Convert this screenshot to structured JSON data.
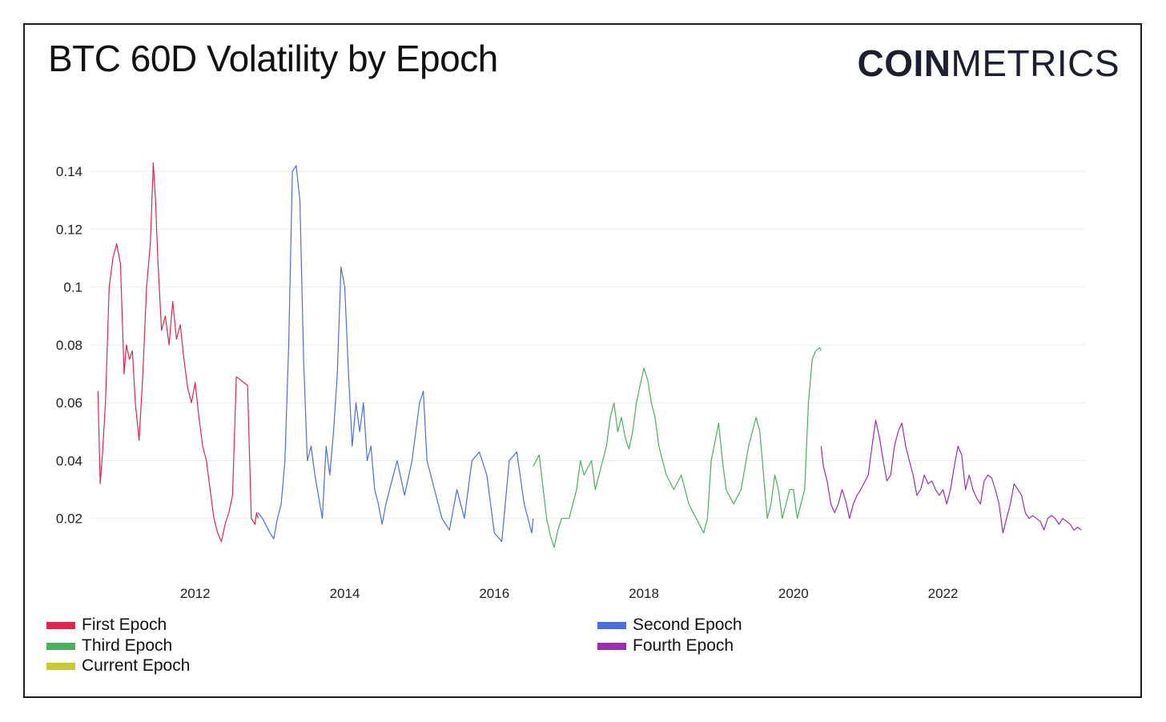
{
  "title": "BTC 60D Volatility by Epoch",
  "logo": {
    "bold": "COIN",
    "light": "METRICS"
  },
  "legend": [
    {
      "name": "First Epoch",
      "color": "#e0264f"
    },
    {
      "name": "Second Epoch",
      "color": "#4a6fdc"
    },
    {
      "name": "Third Epoch",
      "color": "#4caf5f"
    },
    {
      "name": "Fourth Epoch",
      "color": "#9b2fb2"
    },
    {
      "name": "Current Epoch",
      "color": "#c8cc34"
    }
  ],
  "chart_data": {
    "type": "line",
    "title": "BTC 60D Volatility by Epoch",
    "xlabel": "",
    "ylabel": "",
    "xlim": [
      2010.6,
      2023.9
    ],
    "ylim": [
      0.0,
      0.15
    ],
    "yticks": [
      0.02,
      0.04,
      0.06,
      0.08,
      0.1,
      0.12,
      0.14
    ],
    "ytick_labels": [
      "0.02",
      "0.04",
      "0.06",
      "0.08",
      "0.1",
      "0.12",
      "0.14"
    ],
    "xticks": [
      2012,
      2014,
      2016,
      2018,
      2020,
      2022
    ],
    "xtick_labels": [
      "2012",
      "2014",
      "2016",
      "2018",
      "2020",
      "2022"
    ],
    "grid": true,
    "legend_position": "bottom",
    "series": [
      {
        "name": "First Epoch",
        "color": "#e0264f",
        "x": [
          2010.7,
          2010.73,
          2010.76,
          2010.8,
          2010.85,
          2010.9,
          2010.95,
          2011.0,
          2011.05,
          2011.08,
          2011.12,
          2011.16,
          2011.2,
          2011.25,
          2011.3,
          2011.35,
          2011.4,
          2011.44,
          2011.47,
          2011.5,
          2011.55,
          2011.6,
          2011.65,
          2011.7,
          2011.75,
          2011.8,
          2011.85,
          2011.9,
          2011.95,
          2012.0,
          2012.05,
          2012.1,
          2012.15,
          2012.2,
          2012.25,
          2012.3,
          2012.35,
          2012.4,
          2012.45,
          2012.5,
          2012.55,
          2012.6,
          2012.65,
          2012.7,
          2012.75,
          2012.8,
          2012.82,
          2012.84
        ],
        "values": [
          0.064,
          0.032,
          0.042,
          0.06,
          0.1,
          0.11,
          0.115,
          0.108,
          0.07,
          0.08,
          0.075,
          0.078,
          0.06,
          0.047,
          0.07,
          0.1,
          0.115,
          0.143,
          0.13,
          0.11,
          0.085,
          0.09,
          0.08,
          0.095,
          0.082,
          0.087,
          0.075,
          0.065,
          0.06,
          0.067,
          0.055,
          0.045,
          0.04,
          0.03,
          0.02,
          0.015,
          0.012,
          0.018,
          0.022,
          0.028,
          0.069,
          0.068,
          0.067,
          0.066,
          0.02,
          0.018,
          0.022,
          0.02
        ]
      },
      {
        "name": "Second Epoch",
        "color": "#4a6fdc",
        "x": [
          2012.84,
          2012.9,
          2013.0,
          2013.05,
          2013.1,
          2013.15,
          2013.2,
          2013.25,
          2013.3,
          2013.35,
          2013.4,
          2013.45,
          2013.5,
          2013.55,
          2013.6,
          2013.7,
          2013.75,
          2013.8,
          2013.85,
          2013.9,
          2013.95,
          2014.0,
          2014.05,
          2014.1,
          2014.15,
          2014.2,
          2014.25,
          2014.3,
          2014.35,
          2014.4,
          2014.45,
          2014.5,
          2014.55,
          2014.6,
          2014.7,
          2014.8,
          2014.9,
          2015.0,
          2015.05,
          2015.1,
          2015.2,
          2015.3,
          2015.4,
          2015.5,
          2015.6,
          2015.7,
          2015.8,
          2015.9,
          2016.0,
          2016.1,
          2016.2,
          2016.3,
          2016.4,
          2016.5,
          2016.52
        ],
        "values": [
          0.022,
          0.02,
          0.015,
          0.013,
          0.02,
          0.025,
          0.04,
          0.08,
          0.14,
          0.142,
          0.13,
          0.075,
          0.04,
          0.045,
          0.035,
          0.02,
          0.045,
          0.035,
          0.05,
          0.07,
          0.107,
          0.1,
          0.07,
          0.045,
          0.06,
          0.05,
          0.06,
          0.04,
          0.045,
          0.03,
          0.025,
          0.018,
          0.025,
          0.03,
          0.04,
          0.028,
          0.04,
          0.06,
          0.064,
          0.04,
          0.03,
          0.02,
          0.016,
          0.03,
          0.02,
          0.04,
          0.043,
          0.035,
          0.015,
          0.012,
          0.04,
          0.043,
          0.025,
          0.015,
          0.02
        ]
      },
      {
        "name": "Third Epoch",
        "color": "#4caf5f",
        "x": [
          2016.52,
          2016.6,
          2016.7,
          2016.75,
          2016.8,
          2016.85,
          2016.9,
          2017.0,
          2017.1,
          2017.15,
          2017.2,
          2017.3,
          2017.35,
          2017.4,
          2017.5,
          2017.55,
          2017.6,
          2017.65,
          2017.7,
          2017.75,
          2017.8,
          2017.85,
          2017.9,
          2018.0,
          2018.05,
          2018.1,
          2018.15,
          2018.2,
          2018.3,
          2018.4,
          2018.5,
          2018.6,
          2018.7,
          2018.8,
          2018.85,
          2018.9,
          2019.0,
          2019.05,
          2019.1,
          2019.2,
          2019.3,
          2019.4,
          2019.5,
          2019.55,
          2019.6,
          2019.65,
          2019.7,
          2019.75,
          2019.8,
          2019.85,
          2019.9,
          2019.95,
          2020.0,
          2020.05,
          2020.1,
          2020.15,
          2020.2,
          2020.25,
          2020.3,
          2020.35,
          2020.37
        ],
        "values": [
          0.038,
          0.042,
          0.02,
          0.014,
          0.01,
          0.016,
          0.02,
          0.02,
          0.03,
          0.04,
          0.035,
          0.04,
          0.03,
          0.035,
          0.045,
          0.055,
          0.06,
          0.05,
          0.055,
          0.048,
          0.044,
          0.05,
          0.06,
          0.072,
          0.068,
          0.06,
          0.055,
          0.045,
          0.035,
          0.03,
          0.035,
          0.025,
          0.02,
          0.015,
          0.02,
          0.04,
          0.053,
          0.04,
          0.03,
          0.025,
          0.03,
          0.045,
          0.055,
          0.05,
          0.035,
          0.02,
          0.025,
          0.035,
          0.03,
          0.02,
          0.025,
          0.03,
          0.03,
          0.02,
          0.025,
          0.03,
          0.06,
          0.075,
          0.078,
          0.079,
          0.078
        ]
      },
      {
        "name": "Fourth Epoch",
        "color": "#9b2fb2",
        "x": [
          2020.37,
          2020.4,
          2020.45,
          2020.5,
          2020.55,
          2020.6,
          2020.65,
          2020.7,
          2020.75,
          2020.8,
          2020.85,
          2020.9,
          2021.0,
          2021.05,
          2021.1,
          2021.15,
          2021.2,
          2021.25,
          2021.3,
          2021.35,
          2021.4,
          2021.45,
          2021.5,
          2021.55,
          2021.6,
          2021.65,
          2021.7,
          2021.75,
          2021.8,
          2021.85,
          2021.9,
          2021.95,
          2022.0,
          2022.05,
          2022.1,
          2022.15,
          2022.2,
          2022.25,
          2022.3,
          2022.35,
          2022.4,
          2022.45,
          2022.5,
          2022.55,
          2022.6,
          2022.65,
          2022.7,
          2022.75,
          2022.8,
          2022.85,
          2022.9,
          2022.95,
          2023.0,
          2023.05,
          2023.1,
          2023.15,
          2023.2,
          2023.25,
          2023.3,
          2023.35,
          2023.4,
          2023.45,
          2023.5,
          2023.55,
          2023.6,
          2023.65,
          2023.7,
          2023.75,
          2023.8,
          2023.85
        ],
        "values": [
          0.045,
          0.038,
          0.033,
          0.025,
          0.022,
          0.025,
          0.03,
          0.026,
          0.02,
          0.025,
          0.028,
          0.03,
          0.035,
          0.045,
          0.054,
          0.048,
          0.04,
          0.033,
          0.035,
          0.045,
          0.05,
          0.053,
          0.045,
          0.04,
          0.035,
          0.028,
          0.03,
          0.035,
          0.032,
          0.033,
          0.03,
          0.028,
          0.03,
          0.025,
          0.03,
          0.038,
          0.045,
          0.042,
          0.03,
          0.035,
          0.03,
          0.027,
          0.025,
          0.033,
          0.035,
          0.034,
          0.03,
          0.025,
          0.015,
          0.02,
          0.025,
          0.032,
          0.03,
          0.028,
          0.022,
          0.02,
          0.021,
          0.02,
          0.019,
          0.016,
          0.02,
          0.021,
          0.02,
          0.018,
          0.02,
          0.019,
          0.018,
          0.016,
          0.017,
          0.016
        ]
      },
      {
        "name": "Current Epoch",
        "color": "#c8cc34",
        "x": [],
        "values": []
      }
    ]
  }
}
